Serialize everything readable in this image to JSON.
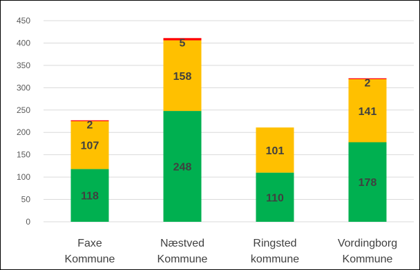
{
  "chart_data": {
    "type": "bar",
    "stacked": true,
    "categories": [
      [
        "Faxe",
        "Kommune"
      ],
      [
        "Næstved",
        "Kommune"
      ],
      [
        "Ringsted",
        "kommune"
      ],
      [
        "Vordingborg",
        "Kommune"
      ]
    ],
    "series": [
      {
        "color": "#00b050",
        "values": [
          118,
          248,
          110,
          178
        ],
        "labels": [
          "118",
          "248",
          "110",
          "178"
        ]
      },
      {
        "color": "#ffc000",
        "values": [
          107,
          158,
          101,
          141
        ],
        "labels": [
          "107",
          "158",
          "101",
          "141"
        ]
      },
      {
        "color": "#ff0000",
        "values": [
          2,
          5,
          0,
          2
        ],
        "labels": [
          "2",
          "5",
          "",
          "2"
        ]
      }
    ],
    "ylim": [
      0,
      450
    ],
    "yticks": [
      0,
      50,
      100,
      150,
      200,
      250,
      300,
      350,
      400,
      450
    ],
    "grid": true,
    "legend": "none"
  }
}
